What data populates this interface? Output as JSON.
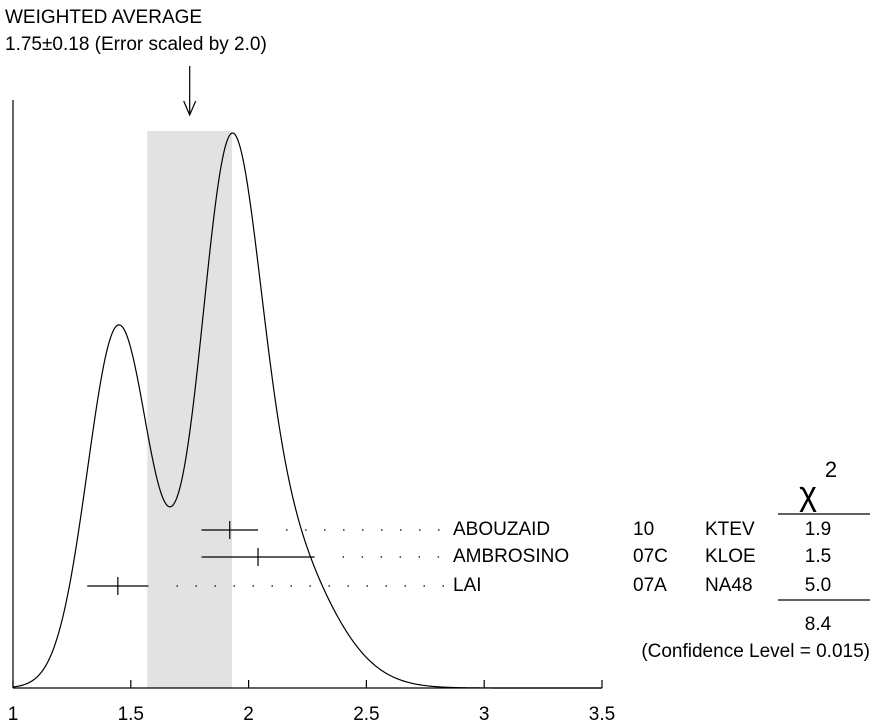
{
  "chart_data": {
    "type": "ideogram",
    "title": "WEIGHTED AVERAGE",
    "subtitle": "1.75±0.18 (Error scaled by 2.0)",
    "weighted_average": {
      "value": 1.75,
      "error": 0.18
    },
    "xlim": [
      1,
      3.5
    ],
    "xticks": [
      1,
      1.5,
      2,
      2.5,
      3,
      3.5
    ],
    "chi2_symbol": "χ",
    "chi2_power": "2",
    "rows": [
      {
        "name": "ABOUZAID",
        "year": "10",
        "experiment": "KTEV",
        "value": 1.92,
        "error": 0.12,
        "chi2": 1.9
      },
      {
        "name": "AMBROSINO",
        "year": "07C",
        "experiment": "KLOE",
        "value": 2.04,
        "error": 0.24,
        "chi2": 1.5
      },
      {
        "name": "LAI",
        "year": "07A",
        "experiment": "NA48",
        "value": 1.445,
        "error": 0.13,
        "chi2": 5,
        "chi2_label": "5.0"
      }
    ],
    "chi2_total": 8.4,
    "confidence_level": "(Confidence Level = 0.015)"
  }
}
